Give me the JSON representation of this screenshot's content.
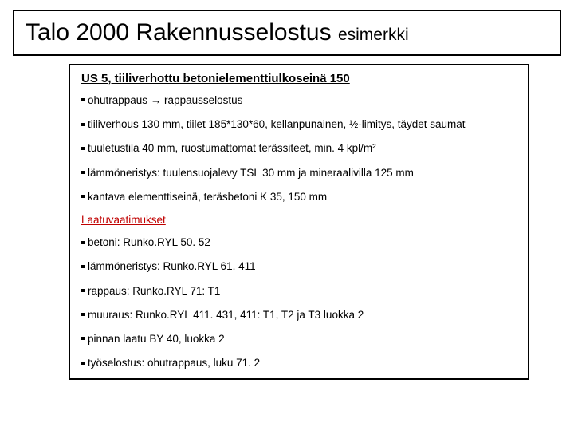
{
  "title": {
    "main": "Talo 2000 Rakennusselostus",
    "sub": "esimerkki",
    "font_size_main": 30,
    "font_size_sub": 21,
    "border_color": "#000000"
  },
  "content": {
    "heading": "US 5, tiiliverhottu betonielementtiulkoseinä 150",
    "lines": [
      "ohutrappaus → rappausselostus",
      "tiiliverhous 130 mm, tiilet 185*130*60, kellanpunainen, ½-limitys, täydet saumat",
      "tuuletustila 40 mm, ruostumattomat terässiteet, min. 4 kpl/m²",
      "lämmöneristys: tuulensuojalevy TSL 30 mm ja mineraalivilla 125 mm",
      "kantava elementtiseinä, teräsbetoni K 35, 150 mm"
    ],
    "quality_heading": "Laatuvaatimukset",
    "quality_heading_color": "#c00000",
    "quality_lines": [
      "betoni: Runko.RYL 50. 52",
      "lämmöneristys: Runko.RYL 61. 411",
      "rappaus: Runko.RYL 71: T1",
      "muuraus: Runko.RYL 411. 431, 411: T1, T2 ja T3 luokka 2",
      "pinnan laatu BY 40, luokka 2",
      "työselostus: ohutrappaus, luku 71. 2"
    ],
    "border_color": "#000000",
    "text_color": "#000000",
    "background_color": "#ffffff",
    "body_font_size": 13.5,
    "heading_font_size": 15
  }
}
